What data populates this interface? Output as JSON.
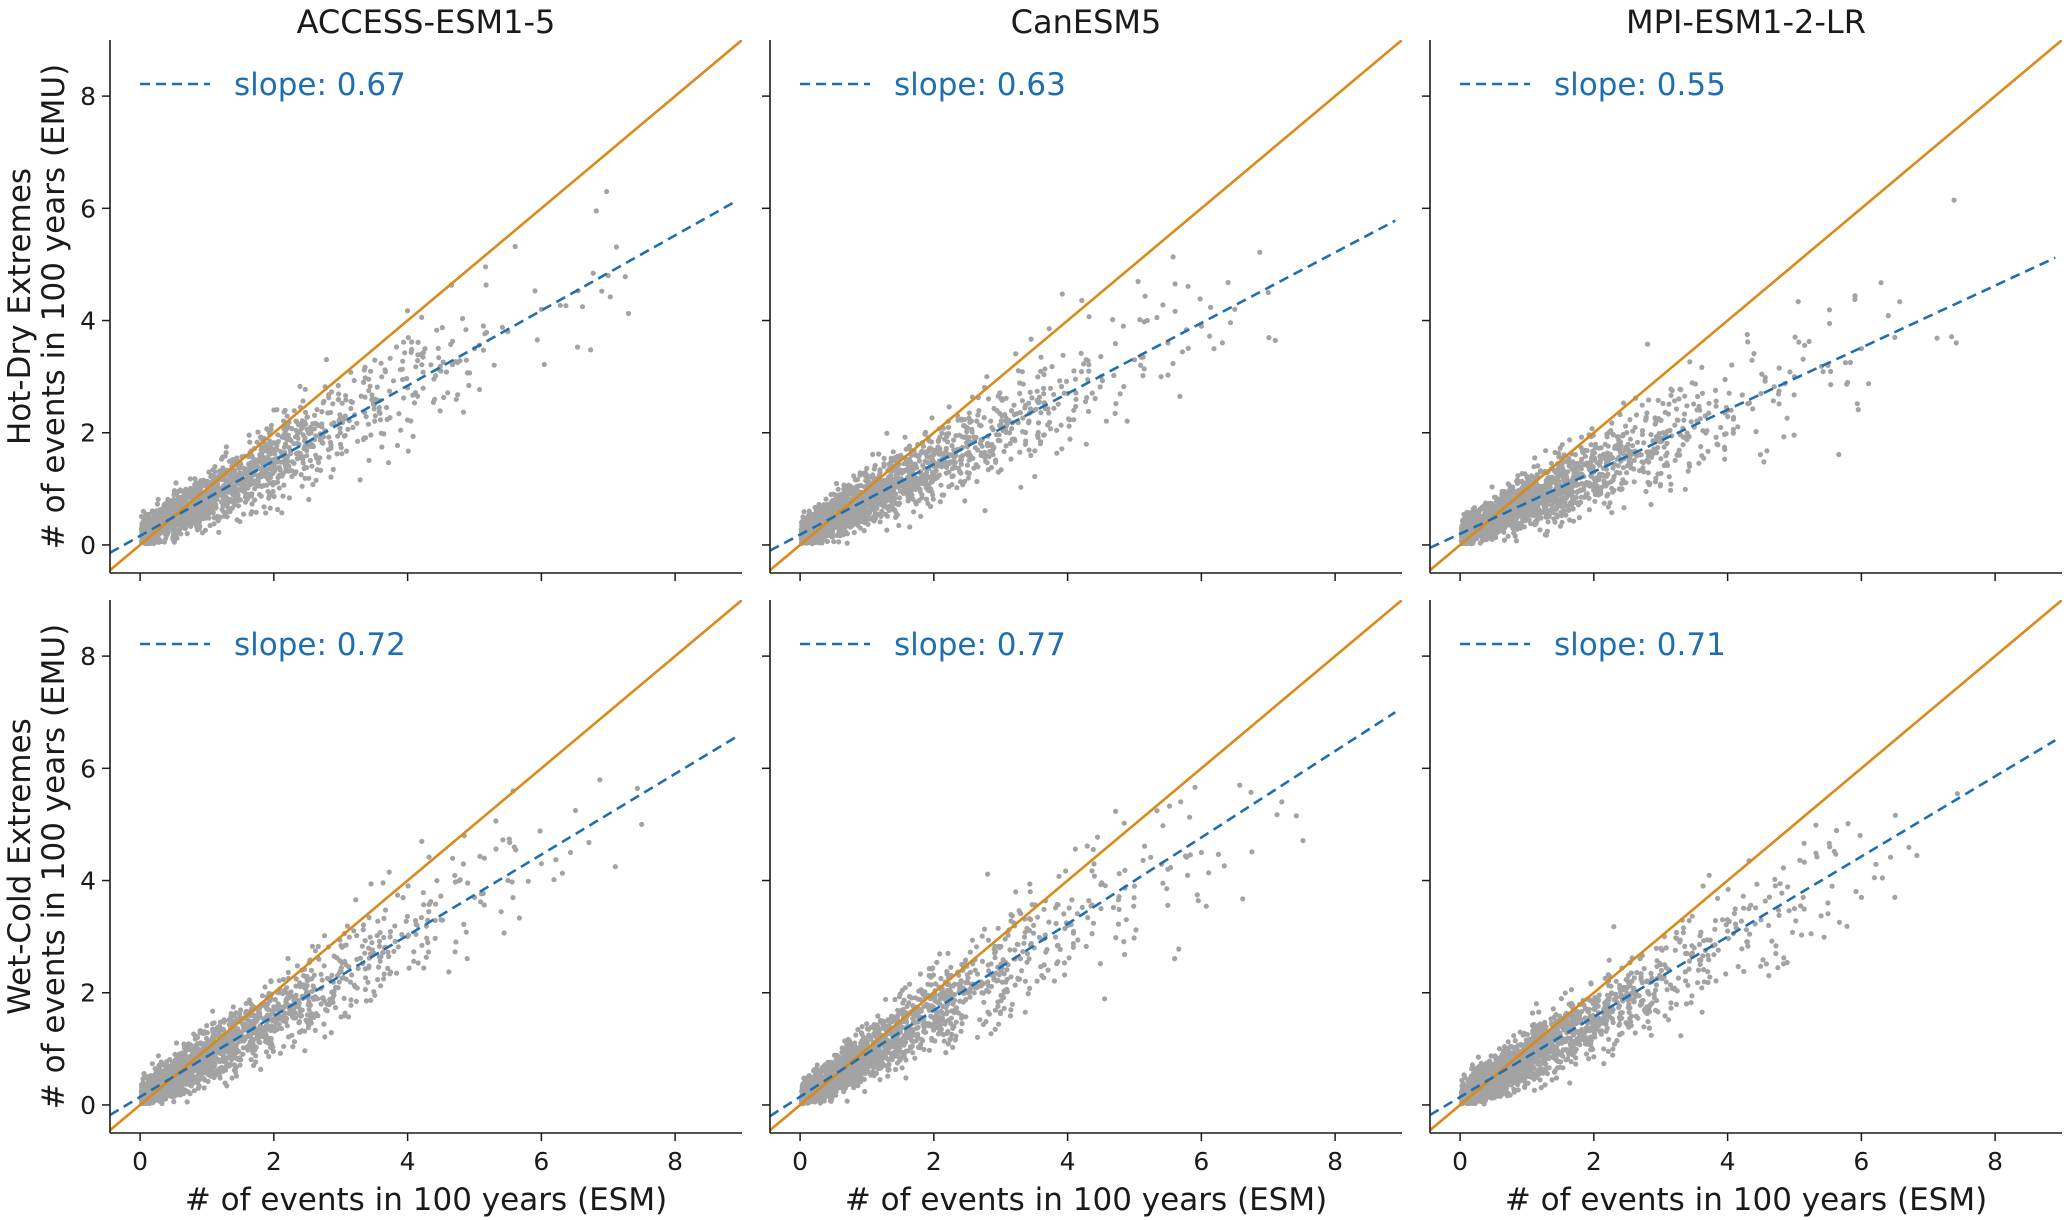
{
  "figure": {
    "column_titles": [
      "ACCESS-ESM1-5",
      "CanESM5",
      "MPI-ESM1-2-LR"
    ],
    "row_ylabels": [
      [
        "Hot-Dry Extremes",
        "# of events in 100 years (EMU)"
      ],
      [
        "Wet-Cold Extremes",
        "# of events in 100 years (EMU)"
      ]
    ],
    "xlabel": "# of events in 100 years (ESM)",
    "legend_prefix": "slope: ",
    "colors": {
      "scatter": "#a3a3a3",
      "identity_line": "#d98a1a",
      "fit_line": "#1f6fb0"
    }
  },
  "chart_data": [
    {
      "type": "scatter",
      "title": "ACCESS-ESM1-5",
      "row": "Hot-Dry Extremes",
      "xlabel": "",
      "ylabel": "# of events in 100 years (EMU)",
      "slope": 0.67,
      "intercept": 0.16,
      "xlim": [
        -0.45,
        9.0
      ],
      "ylim": [
        -0.5,
        9.0
      ],
      "xticks": [
        0,
        2,
        4,
        6,
        8
      ],
      "yticks": [
        0,
        2,
        4,
        6,
        8
      ],
      "legend": "slope: 0.67",
      "legend_position": "top-left",
      "series": [
        {
          "name": "identity",
          "style": "solid",
          "x": [
            -0.45,
            9.0
          ],
          "y": [
            -0.45,
            9.0
          ]
        },
        {
          "name": "fit",
          "style": "dashed",
          "x": [
            -0.45,
            8.9
          ],
          "y": [
            -0.14,
            6.12
          ]
        },
        {
          "name": "points",
          "style": "dots",
          "x": [
            0.1,
            0.3,
            0.5,
            0.8,
            1.2,
            1.6,
            2.0,
            2.5,
            3.0,
            3.5,
            4.0,
            4.5,
            5.0,
            5.5,
            6.0,
            7.0
          ],
          "y": [
            0.15,
            0.4,
            0.55,
            0.8,
            1.0,
            1.3,
            1.5,
            1.8,
            2.2,
            2.5,
            2.8,
            3.1,
            3.5,
            3.8,
            4.2,
            4.8
          ]
        }
      ]
    },
    {
      "type": "scatter",
      "title": "CanESM5",
      "row": "Hot-Dry Extremes",
      "xlabel": "",
      "ylabel": "",
      "slope": 0.63,
      "intercept": 0.18,
      "xlim": [
        -0.45,
        9.0
      ],
      "ylim": [
        -0.5,
        9.0
      ],
      "xticks": [
        0,
        2,
        4,
        6,
        8
      ],
      "yticks": [
        0,
        2,
        4,
        6,
        8
      ],
      "legend": "slope: 0.63",
      "legend_position": "top-left",
      "series": [
        {
          "name": "identity",
          "style": "solid",
          "x": [
            -0.45,
            9.0
          ],
          "y": [
            -0.45,
            9.0
          ]
        },
        {
          "name": "fit",
          "style": "dashed",
          "x": [
            -0.45,
            8.9
          ],
          "y": [
            -0.1,
            5.78
          ]
        },
        {
          "name": "points",
          "style": "dots",
          "x": [
            0.1,
            0.3,
            0.6,
            1.0,
            1.5,
            2.0,
            2.5,
            3.0,
            3.5,
            4.0,
            4.5,
            5.0,
            5.5,
            6.0,
            6.5,
            7.0
          ],
          "y": [
            0.2,
            0.4,
            0.6,
            0.85,
            1.1,
            1.4,
            1.75,
            2.1,
            2.4,
            2.7,
            3.0,
            3.3,
            3.6,
            3.9,
            4.2,
            4.5
          ]
        }
      ]
    },
    {
      "type": "scatter",
      "title": "MPI-ESM1-2-LR",
      "row": "Hot-Dry Extremes",
      "xlabel": "",
      "ylabel": "",
      "slope": 0.55,
      "intercept": 0.2,
      "xlim": [
        -0.45,
        9.0
      ],
      "ylim": [
        -0.5,
        9.0
      ],
      "xticks": [
        0,
        2,
        4,
        6,
        8
      ],
      "yticks": [
        0,
        2,
        4,
        6,
        8
      ],
      "legend": "slope: 0.55",
      "legend_position": "top-left",
      "series": [
        {
          "name": "identity",
          "style": "solid",
          "x": [
            -0.45,
            9.0
          ],
          "y": [
            -0.45,
            9.0
          ]
        },
        {
          "name": "fit",
          "style": "dashed",
          "x": [
            -0.45,
            8.9
          ],
          "y": [
            -0.05,
            5.12
          ]
        },
        {
          "name": "points",
          "style": "dots",
          "x": [
            0.1,
            0.3,
            0.6,
            1.0,
            1.5,
            2.0,
            2.5,
            3.0,
            3.5,
            4.0,
            4.5,
            5.0,
            5.5,
            6.0,
            6.5
          ],
          "y": [
            0.2,
            0.4,
            0.6,
            0.8,
            1.0,
            1.3,
            1.6,
            1.9,
            2.1,
            2.4,
            2.7,
            3.0,
            3.2,
            3.5,
            3.7
          ]
        }
      ]
    },
    {
      "type": "scatter",
      "title": "",
      "row": "Wet-Cold Extremes",
      "xlabel": "# of events in 100 years (ESM)",
      "ylabel": "# of events in 100 years (EMU)",
      "slope": 0.72,
      "intercept": 0.14,
      "xlim": [
        -0.45,
        9.0
      ],
      "ylim": [
        -0.5,
        9.0
      ],
      "xticks": [
        0,
        2,
        4,
        6,
        8
      ],
      "yticks": [
        0,
        2,
        4,
        6,
        8
      ],
      "legend": "slope: 0.72",
      "legend_position": "top-left",
      "series": [
        {
          "name": "identity",
          "style": "solid",
          "x": [
            -0.45,
            9.0
          ],
          "y": [
            -0.45,
            9.0
          ]
        },
        {
          "name": "fit",
          "style": "dashed",
          "x": [
            -0.45,
            8.9
          ],
          "y": [
            -0.18,
            6.55
          ]
        },
        {
          "name": "points",
          "style": "dots",
          "x": [
            0.1,
            0.3,
            0.6,
            1.0,
            1.5,
            2.0,
            2.5,
            3.0,
            3.5,
            4.0,
            4.5,
            5.0,
            5.5,
            6.0,
            7.5
          ],
          "y": [
            0.3,
            0.5,
            0.7,
            0.95,
            1.3,
            1.7,
            2.0,
            2.4,
            2.7,
            3.0,
            3.3,
            3.7,
            4.0,
            4.3,
            5.0
          ]
        }
      ]
    },
    {
      "type": "scatter",
      "title": "",
      "row": "Wet-Cold Extremes",
      "xlabel": "# of events in 100 years (ESM)",
      "ylabel": "",
      "slope": 0.77,
      "intercept": 0.12,
      "xlim": [
        -0.45,
        9.0
      ],
      "ylim": [
        -0.5,
        9.0
      ],
      "xticks": [
        0,
        2,
        4,
        6,
        8
      ],
      "yticks": [
        0,
        2,
        4,
        6,
        8
      ],
      "legend": "slope: 0.77",
      "legend_position": "top-left",
      "series": [
        {
          "name": "identity",
          "style": "solid",
          "x": [
            -0.45,
            9.0
          ],
          "y": [
            -0.45,
            9.0
          ]
        },
        {
          "name": "fit",
          "style": "dashed",
          "x": [
            -0.45,
            8.9
          ],
          "y": [
            -0.2,
            7.0
          ]
        },
        {
          "name": "points",
          "style": "dots",
          "x": [
            0.1,
            0.3,
            0.6,
            1.0,
            1.5,
            2.0,
            2.5,
            3.0,
            3.5,
            4.0,
            4.5,
            5.0,
            5.5,
            6.0
          ],
          "y": [
            0.3,
            0.5,
            0.7,
            0.95,
            1.3,
            1.7,
            2.0,
            2.4,
            2.8,
            3.2,
            3.5,
            3.9,
            4.2,
            4.5
          ]
        }
      ]
    },
    {
      "type": "scatter",
      "title": "",
      "row": "Wet-Cold Extremes",
      "xlabel": "# of events in 100 years (ESM)",
      "ylabel": "",
      "slope": 0.71,
      "intercept": 0.12,
      "xlim": [
        -0.45,
        9.0
      ],
      "ylim": [
        -0.5,
        9.0
      ],
      "xticks": [
        0,
        2,
        4,
        6,
        8
      ],
      "yticks": [
        0,
        2,
        4,
        6,
        8
      ],
      "legend": "slope: 0.71",
      "legend_position": "top-left",
      "series": [
        {
          "name": "identity",
          "style": "solid",
          "x": [
            -0.45,
            9.0
          ],
          "y": [
            -0.45,
            9.0
          ]
        },
        {
          "name": "fit",
          "style": "dashed",
          "x": [
            -0.45,
            8.9
          ],
          "y": [
            -0.18,
            6.5
          ]
        },
        {
          "name": "points",
          "style": "dots",
          "x": [
            0.1,
            0.3,
            0.6,
            1.0,
            1.5,
            2.0,
            2.5,
            3.0,
            3.5,
            4.0,
            4.5,
            5.0,
            5.5,
            6.0,
            6.5
          ],
          "y": [
            0.3,
            0.5,
            0.75,
            1.0,
            1.4,
            1.8,
            2.1,
            2.5,
            2.8,
            3.1,
            3.3,
            3.5,
            3.6,
            3.7,
            3.7
          ]
        }
      ]
    }
  ]
}
